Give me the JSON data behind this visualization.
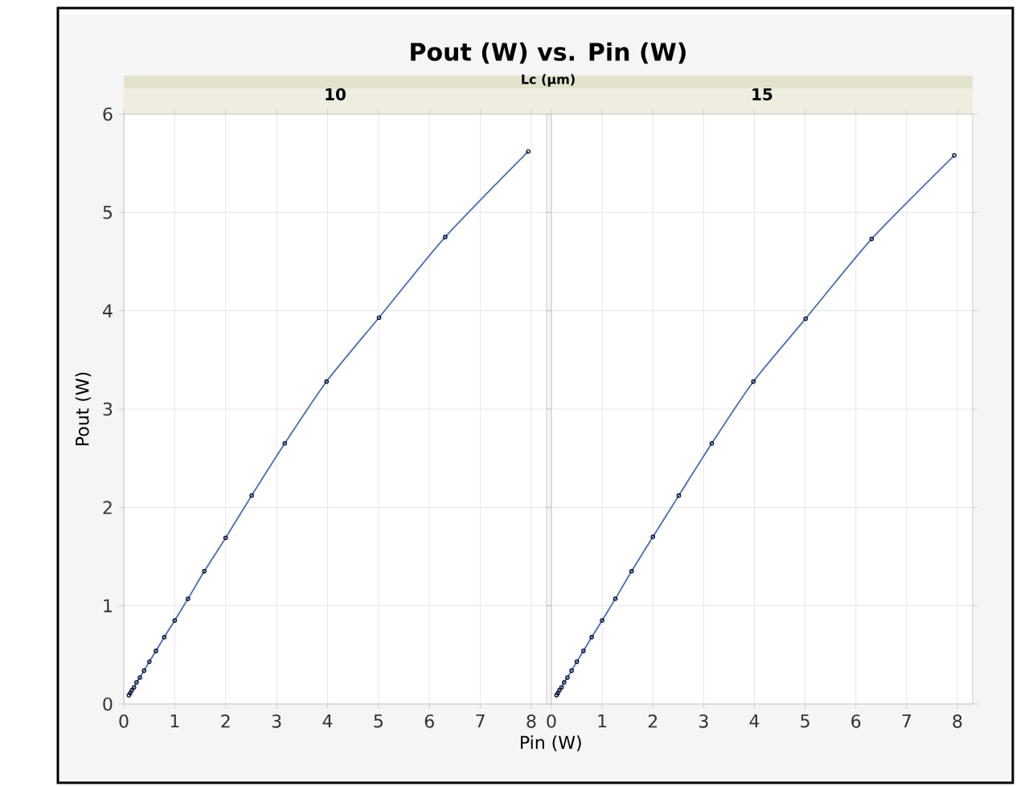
{
  "chart_data": [
    {
      "type": "line",
      "title": "10",
      "annotations": [
        "Pout (W) vs. Pin (W)",
        "Lc (µm)"
      ],
      "xlabel": "Pin (W)",
      "ylabel": "Pout (W)",
      "xlim": [
        0,
        8.3
      ],
      "ylim": [
        0,
        6
      ],
      "xticks": [
        0,
        1,
        2,
        3,
        4,
        5,
        6,
        7,
        8
      ],
      "yticks": [
        0,
        1,
        2,
        3,
        4,
        5,
        6
      ],
      "grid": true,
      "marker": "circle",
      "line_style": "solid",
      "x": [
        0.1,
        0.126,
        0.158,
        0.2,
        0.251,
        0.316,
        0.398,
        0.501,
        0.631,
        0.794,
        1,
        1.26,
        1.58,
        2,
        2.51,
        3.16,
        3.98,
        5.01,
        6.31,
        7.94
      ],
      "series": [
        {
          "color": "#4a6cb8",
          "values": [
            0.09,
            0.11,
            0.14,
            0.17,
            0.22,
            0.27,
            0.34,
            0.43,
            0.54,
            0.68,
            0.85,
            1.07,
            1.35,
            1.69,
            2.12,
            2.65,
            3.28,
            3.93,
            4.75,
            5.62
          ]
        }
      ]
    },
    {
      "type": "line",
      "title": "15",
      "xlim": [
        0,
        8.3
      ],
      "ylim": [
        0,
        6
      ],
      "xticks": [
        0,
        1,
        2,
        3,
        4,
        5,
        6,
        7,
        8
      ],
      "yticks": [
        0,
        1,
        2,
        3,
        4,
        5,
        6
      ],
      "grid": true,
      "marker": "circle",
      "line_style": "solid",
      "tick_labels": "x",
      "x": [
        0.1,
        0.126,
        0.158,
        0.2,
        0.251,
        0.316,
        0.398,
        0.501,
        0.631,
        0.794,
        1,
        1.26,
        1.58,
        2,
        2.51,
        3.16,
        3.98,
        5.01,
        6.31,
        7.94
      ],
      "series": [
        {
          "color": "#4a6cb8",
          "values": [
            0.09,
            0.11,
            0.14,
            0.17,
            0.22,
            0.27,
            0.34,
            0.43,
            0.54,
            0.68,
            0.85,
            1.07,
            1.35,
            1.7,
            2.12,
            2.65,
            3.28,
            3.92,
            4.73,
            5.58
          ]
        }
      ]
    }
  ]
}
